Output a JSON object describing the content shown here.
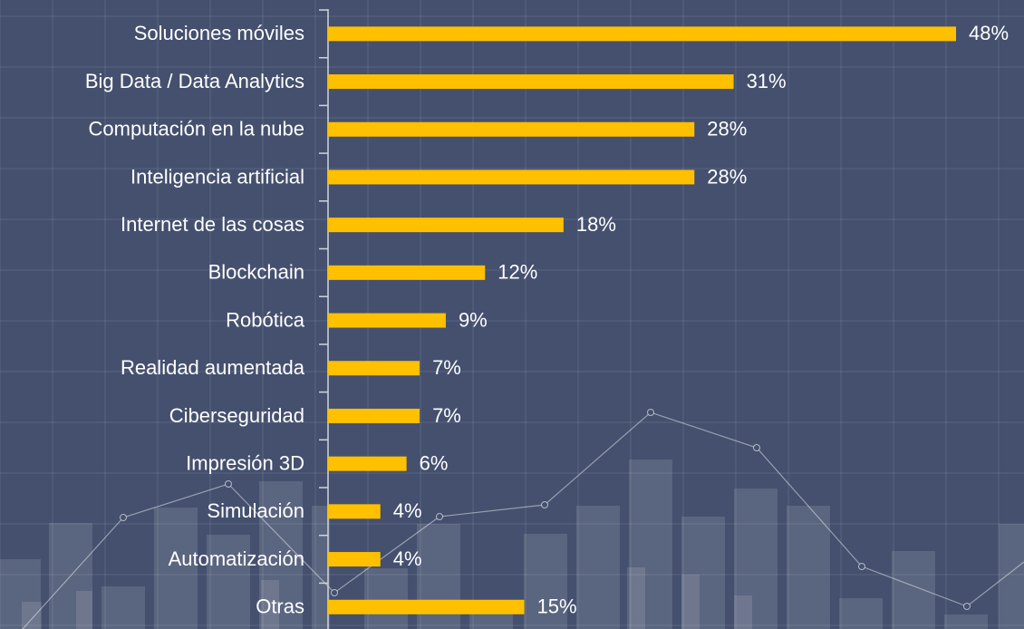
{
  "chart_data": {
    "type": "bar",
    "orientation": "horizontal",
    "color": "#ffc000",
    "categories": [
      "Soluciones móviles",
      "Big Data / Data Analytics",
      "Computación en la nube",
      "Inteligencia artificial",
      "Internet de las cosas",
      "Blockchain",
      "Robótica",
      "Realidad aumentada",
      "Ciberseguridad",
      "Impresión 3D",
      "Simulación",
      "Automatización",
      "Otras"
    ],
    "values": [
      48,
      31,
      28,
      28,
      18,
      12,
      9,
      7,
      7,
      6,
      4,
      4,
      15
    ],
    "value_labels": [
      "48%",
      "31%",
      "28%",
      "28%",
      "18%",
      "12%",
      "9%",
      "7%",
      "7%",
      "6%",
      "4%",
      "4%",
      "15%"
    ]
  }
}
